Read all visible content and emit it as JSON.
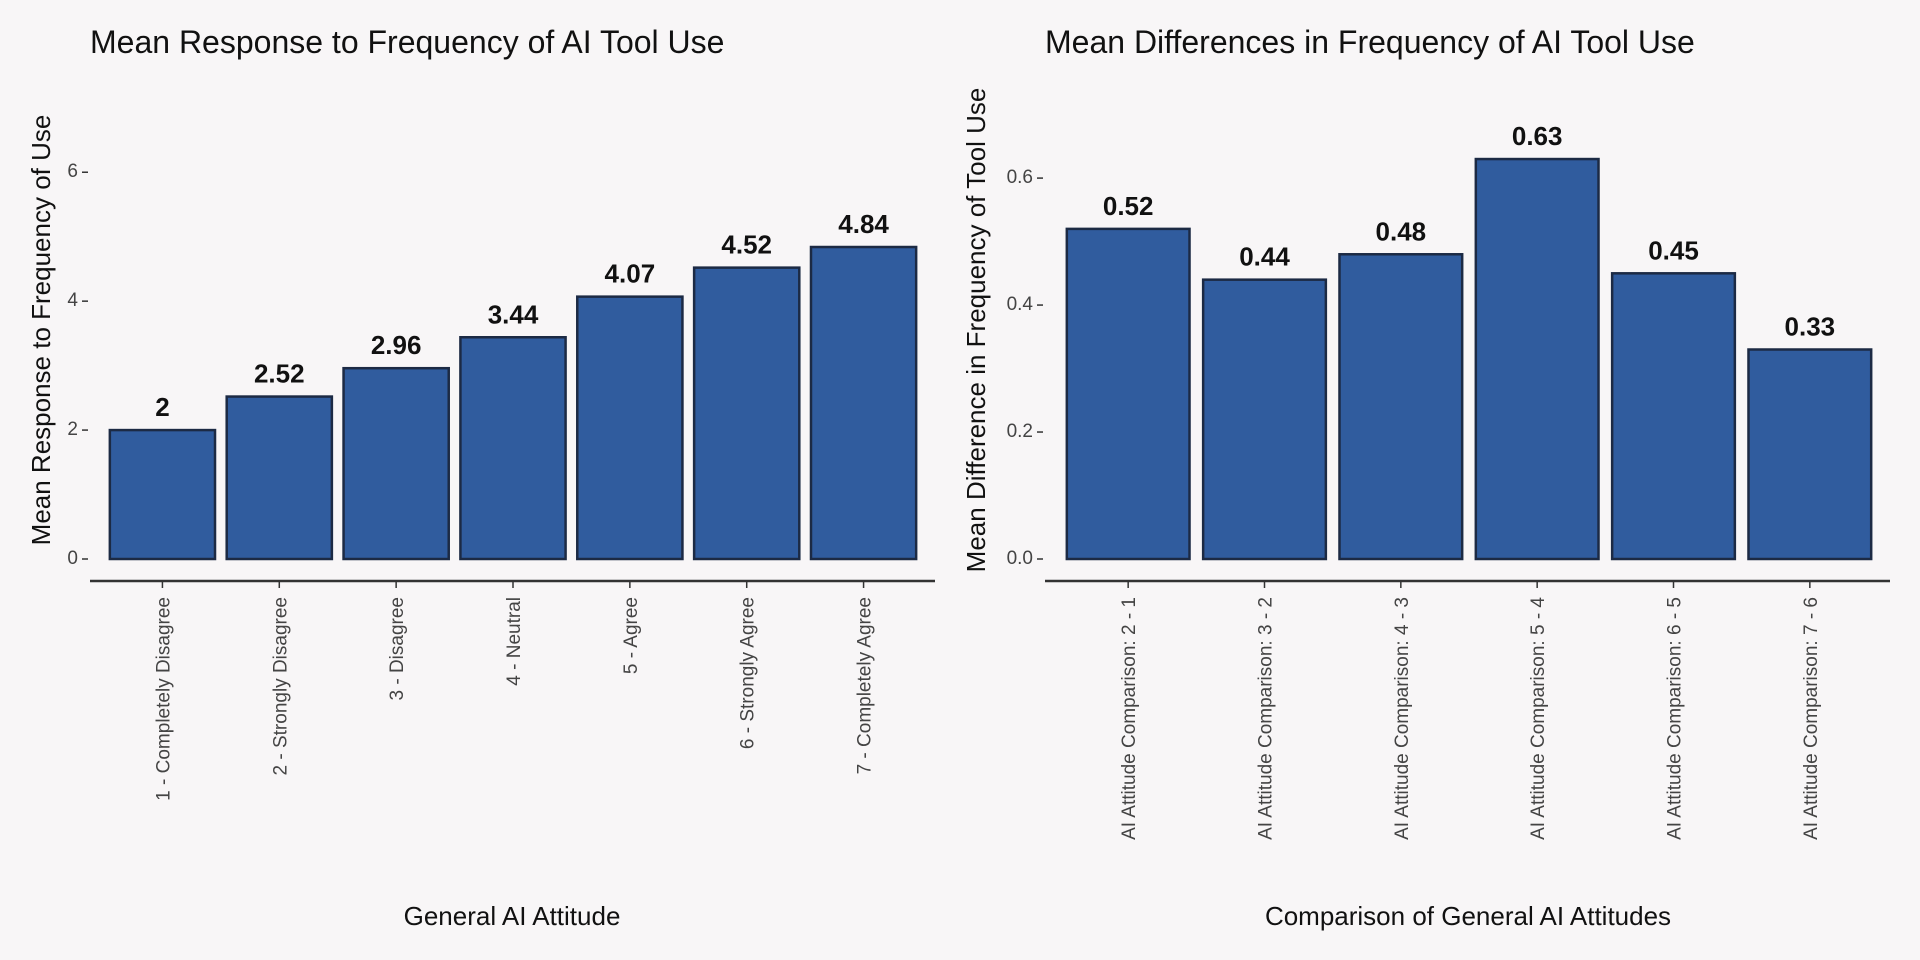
{
  "chart_data": [
    {
      "type": "bar",
      "title": "Mean Response to Frequency of AI Tool Use",
      "xlabel": "General AI Attitude",
      "ylabel": "Mean Response to Frequency of Use",
      "categories": [
        "1 - Completely Disagree",
        "2 - Strongly Disagree",
        "3 - Disagree",
        "4 - Neutral",
        "5 - Agree",
        "6 - Strongly Agree",
        "7 - Completely Agree"
      ],
      "values": [
        2,
        2.52,
        2.96,
        3.44,
        4.07,
        4.52,
        4.84
      ],
      "value_labels": [
        "2",
        "2.52",
        "2.96",
        "3.44",
        "4.07",
        "4.52",
        "4.84"
      ],
      "ylim": [
        0,
        6.5
      ],
      "yticks": [
        0,
        2,
        4,
        6
      ],
      "ytick_labels": [
        "0",
        "2",
        "4",
        "6"
      ],
      "grid": false,
      "bar_color": "#305c9e",
      "bar_edge_color": "#1c2a44"
    },
    {
      "type": "bar",
      "title": "Mean Differences in Frequency of AI Tool Use",
      "xlabel": "Comparison of General AI Attitudes",
      "ylabel": "Mean Difference in Frequency of Tool Use",
      "categories": [
        "AI Attitude Comparison: 2 - 1",
        "AI Attitude Comparison: 3 - 2",
        "AI Attitude Comparison: 4 - 3",
        "AI Attitude Comparison: 5 - 4",
        "AI Attitude Comparison: 6 - 5",
        "AI Attitude Comparison: 7 - 6"
      ],
      "values": [
        0.52,
        0.44,
        0.48,
        0.63,
        0.45,
        0.33
      ],
      "value_labels": [
        "0.52",
        "0.44",
        "0.48",
        "0.63",
        "0.45",
        "0.33"
      ],
      "ylim": [
        0,
        0.66
      ],
      "yticks": [
        0,
        0.2,
        0.4,
        0.6
      ],
      "ytick_labels": [
        "0.0",
        "0.2",
        "0.4",
        "0.6"
      ],
      "grid": false,
      "bar_color": "#305c9e",
      "bar_edge_color": "#1c2a44"
    }
  ]
}
